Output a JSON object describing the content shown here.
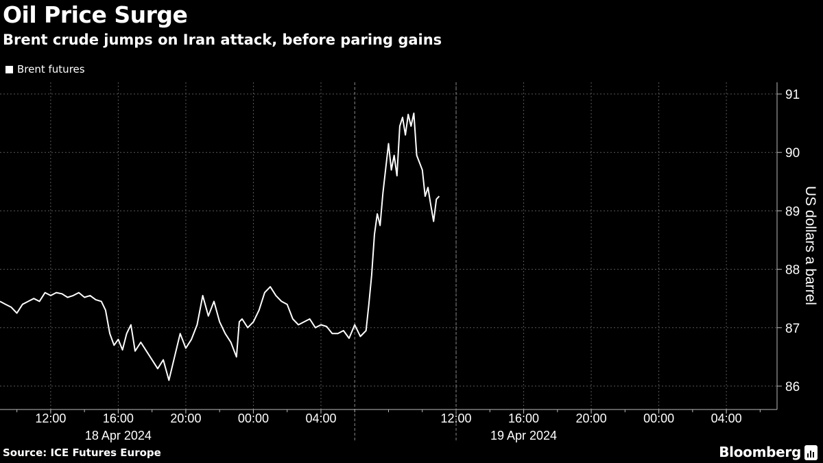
{
  "header": {
    "title": "Oil Price Surge",
    "subtitle": "Brent crude jumps on Iran attack, before paring gains"
  },
  "footer": {
    "source": "Source: ICE Futures Europe",
    "brand": "Bloomberg"
  },
  "colors": {
    "background": "#000000",
    "line": "#ffffff",
    "grid": "#5a5a5a",
    "text": "#ffffff"
  },
  "chart_data": {
    "type": "line",
    "title": "Oil Price Surge",
    "subtitle": "Brent crude jumps on Iran attack, before paring gains",
    "ylabel": "US dollars a barrel",
    "ylim": [
      85.6,
      91.2
    ],
    "yticks": [
      86,
      87,
      88,
      89,
      90,
      91
    ],
    "xlim": [
      "2024-04-18 09:00",
      "2024-04-20 07:00"
    ],
    "xticks": [
      {
        "time": "2024-04-18 12:00",
        "label": "12:00"
      },
      {
        "time": "2024-04-18 16:00",
        "label": "16:00"
      },
      {
        "time": "2024-04-18 20:00",
        "label": "20:00"
      },
      {
        "time": "2024-04-19 00:00",
        "label": "00:00"
      },
      {
        "time": "2024-04-19 04:00",
        "label": "04:00"
      },
      {
        "time": "2024-04-19 12:00",
        "label": "12:00"
      },
      {
        "time": "2024-04-19 16:00",
        "label": "16:00"
      },
      {
        "time": "2024-04-19 20:00",
        "label": "20:00"
      },
      {
        "time": "2024-04-20 00:00",
        "label": "00:00"
      },
      {
        "time": "2024-04-20 04:00",
        "label": "04:00"
      }
    ],
    "date_labels": [
      {
        "time": "2024-04-18 16:00",
        "label": "18 Apr 2024"
      },
      {
        "time": "2024-04-19 16:00",
        "label": "19 Apr 2024"
      }
    ],
    "session_breaks": [
      "2024-04-19 06:00",
      "2024-04-19 12:00"
    ],
    "grid": true,
    "legend": {
      "position": "top-left",
      "entries": [
        "Brent futures"
      ]
    },
    "series": [
      {
        "name": "Brent futures",
        "points": [
          [
            "2024-04-18 09:00",
            87.45
          ],
          [
            "2024-04-18 09:20",
            87.4
          ],
          [
            "2024-04-18 09:40",
            87.35
          ],
          [
            "2024-04-18 10:00",
            87.25
          ],
          [
            "2024-04-18 10:20",
            87.4
          ],
          [
            "2024-04-18 10:40",
            87.45
          ],
          [
            "2024-04-18 11:00",
            87.5
          ],
          [
            "2024-04-18 11:20",
            87.45
          ],
          [
            "2024-04-18 11:40",
            87.6
          ],
          [
            "2024-04-18 12:00",
            87.55
          ],
          [
            "2024-04-18 12:20",
            87.6
          ],
          [
            "2024-04-18 12:40",
            87.58
          ],
          [
            "2024-04-18 13:00",
            87.52
          ],
          [
            "2024-04-18 13:20",
            87.55
          ],
          [
            "2024-04-18 13:40",
            87.6
          ],
          [
            "2024-04-18 14:00",
            87.52
          ],
          [
            "2024-04-18 14:20",
            87.55
          ],
          [
            "2024-04-18 14:40",
            87.48
          ],
          [
            "2024-04-18 15:00",
            87.45
          ],
          [
            "2024-04-18 15:15",
            87.3
          ],
          [
            "2024-04-18 15:30",
            86.9
          ],
          [
            "2024-04-18 15:45",
            86.7
          ],
          [
            "2024-04-18 16:00",
            86.8
          ],
          [
            "2024-04-18 16:15",
            86.62
          ],
          [
            "2024-04-18 16:30",
            86.9
          ],
          [
            "2024-04-18 16:45",
            87.05
          ],
          [
            "2024-04-18 17:00",
            86.6
          ],
          [
            "2024-04-18 17:20",
            86.75
          ],
          [
            "2024-04-18 17:40",
            86.6
          ],
          [
            "2024-04-18 18:00",
            86.45
          ],
          [
            "2024-04-18 18:20",
            86.3
          ],
          [
            "2024-04-18 18:40",
            86.45
          ],
          [
            "2024-04-18 19:00",
            86.1
          ],
          [
            "2024-04-18 19:20",
            86.5
          ],
          [
            "2024-04-18 19:40",
            86.9
          ],
          [
            "2024-04-18 20:00",
            86.65
          ],
          [
            "2024-04-18 20:20",
            86.8
          ],
          [
            "2024-04-18 20:40",
            87.05
          ],
          [
            "2024-04-18 21:00",
            87.55
          ],
          [
            "2024-04-18 21:20",
            87.2
          ],
          [
            "2024-04-18 21:40",
            87.45
          ],
          [
            "2024-04-18 22:00",
            87.1
          ],
          [
            "2024-04-18 22:20",
            86.9
          ],
          [
            "2024-04-18 22:40",
            86.75
          ],
          [
            "2024-04-18 23:00",
            86.5
          ],
          [
            "2024-04-18 23:10",
            87.1
          ],
          [
            "2024-04-18 23:20",
            87.15
          ],
          [
            "2024-04-18 23:40",
            87.0
          ],
          [
            "2024-04-19 00:00",
            87.1
          ],
          [
            "2024-04-19 00:20",
            87.3
          ],
          [
            "2024-04-19 00:40",
            87.6
          ],
          [
            "2024-04-19 01:00",
            87.7
          ],
          [
            "2024-04-19 01:20",
            87.55
          ],
          [
            "2024-04-19 01:40",
            87.45
          ],
          [
            "2024-04-19 02:00",
            87.4
          ],
          [
            "2024-04-19 02:20",
            87.15
          ],
          [
            "2024-04-19 02:40",
            87.05
          ],
          [
            "2024-04-19 03:00",
            87.1
          ],
          [
            "2024-04-19 03:20",
            87.15
          ],
          [
            "2024-04-19 03:40",
            87.0
          ],
          [
            "2024-04-19 04:00",
            87.05
          ],
          [
            "2024-04-19 04:20",
            87.02
          ],
          [
            "2024-04-19 04:40",
            86.9
          ],
          [
            "2024-04-19 05:00",
            86.9
          ],
          [
            "2024-04-19 05:20",
            86.95
          ],
          [
            "2024-04-19 05:40",
            86.82
          ],
          [
            "2024-04-19 06:00",
            87.05
          ],
          [
            "2024-04-19 06:20",
            86.85
          ],
          [
            "2024-04-19 06:40",
            86.95
          ],
          [
            "2024-04-19 06:50",
            87.4
          ],
          [
            "2024-04-19 07:00",
            87.9
          ],
          [
            "2024-04-19 07:10",
            88.6
          ],
          [
            "2024-04-19 07:20",
            88.95
          ],
          [
            "2024-04-19 07:30",
            88.75
          ],
          [
            "2024-04-19 07:40",
            89.3
          ],
          [
            "2024-04-19 08:00",
            90.15
          ],
          [
            "2024-04-19 08:10",
            89.7
          ],
          [
            "2024-04-19 08:20",
            89.95
          ],
          [
            "2024-04-19 08:30",
            89.6
          ],
          [
            "2024-04-19 08:40",
            90.45
          ],
          [
            "2024-04-19 08:50",
            90.6
          ],
          [
            "2024-04-19 09:00",
            90.3
          ],
          [
            "2024-04-19 09:10",
            90.65
          ],
          [
            "2024-04-19 09:20",
            90.45
          ],
          [
            "2024-04-19 09:30",
            90.67
          ],
          [
            "2024-04-19 09:40",
            89.95
          ],
          [
            "2024-04-19 10:00",
            89.7
          ],
          [
            "2024-04-19 10:10",
            89.25
          ],
          [
            "2024-04-19 10:20",
            89.4
          ],
          [
            "2024-04-19 10:30",
            89.1
          ],
          [
            "2024-04-19 10:40",
            88.82
          ],
          [
            "2024-04-19 10:50",
            89.2
          ],
          [
            "2024-04-19 11:00",
            89.25
          ]
        ]
      }
    ]
  }
}
